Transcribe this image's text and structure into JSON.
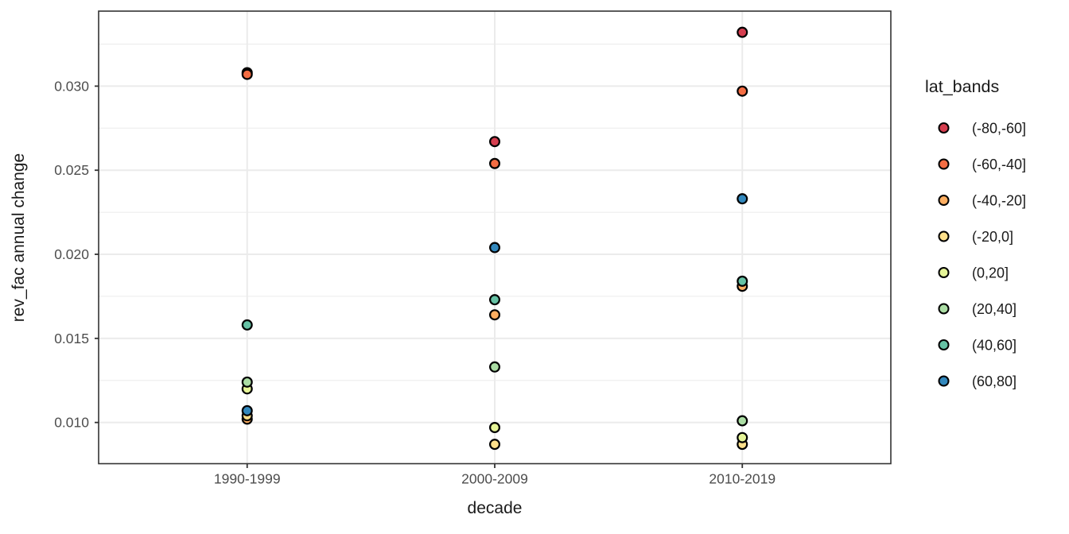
{
  "chart_data": {
    "type": "scatter",
    "title": "",
    "xlabel": "decade",
    "ylabel": "rev_fac annual change",
    "legend_title": "lat_bands",
    "legend_position": "right",
    "grid": true,
    "categories": [
      "1990-1999",
      "2000-2009",
      "2010-2019"
    ],
    "y_tick_labels": [
      "0.010",
      "0.015",
      "0.020",
      "0.025",
      "0.030"
    ],
    "y_ticks": [
      0.01,
      0.015,
      0.02,
      0.025,
      0.03
    ],
    "y_minor_ticks": [
      0.0125,
      0.0175,
      0.0225,
      0.0275,
      0.0325
    ],
    "ylim": [
      0.00755,
      0.03446
    ],
    "series": [
      {
        "name": "(-80,-60]",
        "color": "#D53E4F",
        "values": [
          0.0308,
          0.0267,
          0.0332
        ]
      },
      {
        "name": "(-60,-40]",
        "color": "#F46D43",
        "values": [
          0.0307,
          0.0254,
          0.0297
        ]
      },
      {
        "name": "(-40,-20]",
        "color": "#FDAE61",
        "values": [
          0.0102,
          0.0164,
          0.0181
        ]
      },
      {
        "name": "(-20,0]",
        "color": "#FEE08B",
        "values": [
          0.0104,
          0.0087,
          0.0087
        ]
      },
      {
        "name": "(0,20]",
        "color": "#E6F598",
        "values": [
          0.012,
          0.0097,
          0.0091
        ]
      },
      {
        "name": "(20,40]",
        "color": "#ABDDA4",
        "values": [
          0.0124,
          0.0133,
          0.0101
        ]
      },
      {
        "name": "(40,60]",
        "color": "#66C2A5",
        "values": [
          0.0158,
          0.0173,
          0.0184
        ]
      },
      {
        "name": "(60,80]",
        "color": "#3288BD",
        "values": [
          0.0107,
          0.0204,
          0.0233
        ]
      }
    ],
    "colors": {
      "grid": "#EBEBEB",
      "panel_border": "#333333",
      "tick_text": "#4D4D4D",
      "point_stroke": "#000000",
      "background": "#FFFFFF"
    }
  }
}
